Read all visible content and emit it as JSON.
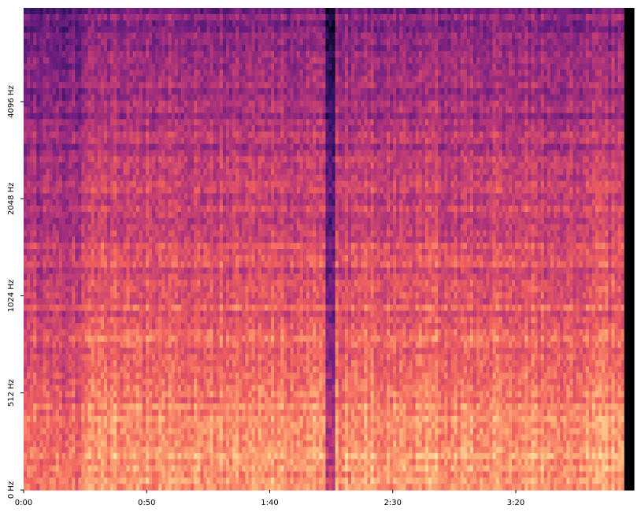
{
  "chart_data": {
    "type": "spectrogram",
    "xlim": [
      0,
      248
    ],
    "xticks": [
      {
        "value": 0,
        "label": "0:00"
      },
      {
        "value": 50,
        "label": "0:50"
      },
      {
        "value": 100,
        "label": "1:40"
      },
      {
        "value": 150,
        "label": "2:30"
      },
      {
        "value": 200,
        "label": "3:20"
      }
    ],
    "yscale": "symlog",
    "linthresh": 512,
    "ylim": [
      0,
      8000
    ],
    "yticks": [
      {
        "value": 0,
        "label": "0 Hz"
      },
      {
        "value": 512,
        "label": "512 Hz"
      },
      {
        "value": 1024,
        "label": "1024 Hz"
      },
      {
        "value": 2048,
        "label": "2048 Hz"
      },
      {
        "value": 4096,
        "label": "4096 Hz"
      }
    ],
    "colormap": [
      "#000004",
      "#2c115f",
      "#721f81",
      "#b73779",
      "#f1605d",
      "#feb078",
      "#fcfdbf"
    ]
  }
}
